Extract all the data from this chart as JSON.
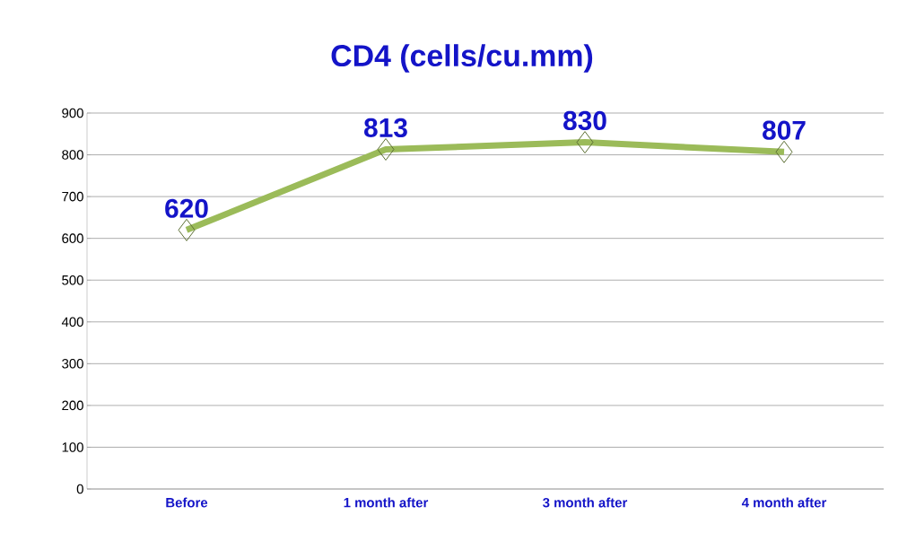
{
  "chart_data": {
    "type": "line",
    "title": "CD4 (cells/cu.mm)",
    "categories": [
      "Before",
      "1 month after",
      "3 month after",
      "4 month after"
    ],
    "values": [
      620,
      813,
      830,
      807
    ],
    "color": "#9bbb59",
    "ylim": [
      0,
      900
    ],
    "yticks": [
      0,
      100,
      200,
      300,
      400,
      500,
      600,
      700,
      800,
      900
    ],
    "grid": "y",
    "marker": "diamond",
    "line_style": "solid",
    "data_labels": true
  }
}
